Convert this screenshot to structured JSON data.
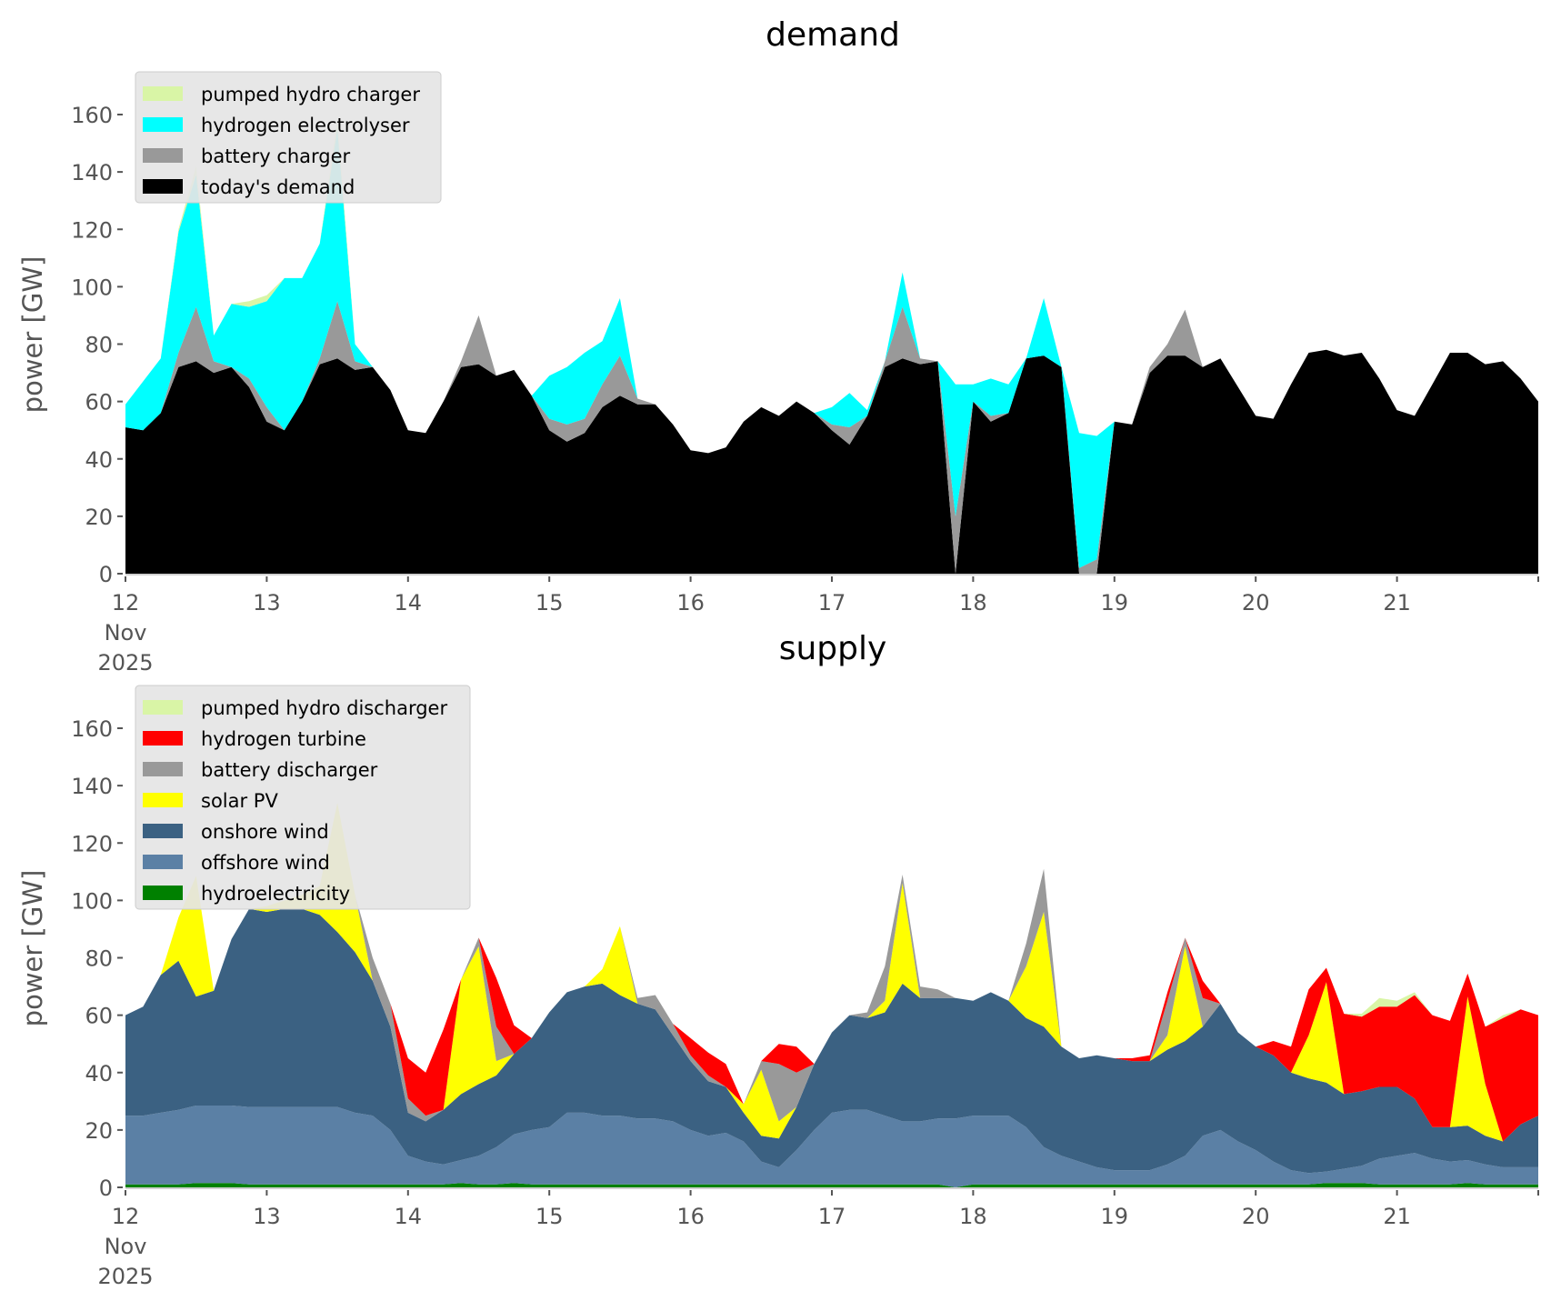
{
  "chart_data": [
    {
      "type": "area",
      "stacked": true,
      "title": "demand",
      "ylabel": "power [GW]",
      "xlabel": "",
      "x_start_day": 12,
      "x_step_days": 0.125,
      "xlim": [
        12,
        22
      ],
      "ylim": [
        0,
        175
      ],
      "yticks": [
        0,
        20,
        40,
        60,
        80,
        100,
        120,
        140,
        160
      ],
      "xticks": [
        {
          "value": 12,
          "label": "12\nNov\n2025"
        },
        {
          "value": 13,
          "label": "13"
        },
        {
          "value": 14,
          "label": "14"
        },
        {
          "value": 15,
          "label": "15"
        },
        {
          "value": 16,
          "label": "16"
        },
        {
          "value": 17,
          "label": "17"
        },
        {
          "value": 18,
          "label": "18"
        },
        {
          "value": 19,
          "label": "19"
        },
        {
          "value": 20,
          "label": "20"
        },
        {
          "value": 21,
          "label": "21"
        },
        {
          "value": 22,
          "label": ""
        }
      ],
      "grid": false,
      "legend_position": "top-left",
      "legend_order": [
        "pumped hydro charger",
        "hydrogen electrolyser",
        "battery charger",
        "today's demand"
      ],
      "series": [
        {
          "name": "today's demand",
          "color": "#000000",
          "values": [
            51,
            50,
            56,
            72,
            74,
            70,
            72,
            65,
            53,
            50,
            60,
            73,
            75,
            71,
            72,
            64,
            50,
            49,
            60,
            72,
            73,
            69,
            71,
            62,
            50,
            46,
            49,
            58,
            62,
            59,
            59,
            52,
            43,
            42,
            44,
            53,
            58,
            55,
            60,
            56,
            50,
            45,
            55,
            72,
            75,
            73,
            74,
            0,
            60,
            53,
            56,
            75,
            76,
            72,
            0,
            0,
            53,
            52,
            70,
            76,
            76,
            72,
            75,
            65,
            55,
            54,
            66,
            77,
            78,
            76,
            77,
            68,
            57,
            55,
            66,
            77,
            77,
            73,
            74,
            68,
            60
          ]
        },
        {
          "name": "battery charger",
          "color": "#999999",
          "values": [
            0,
            0,
            0,
            5,
            19,
            4,
            0,
            3,
            5,
            0,
            0,
            2,
            20,
            3,
            0,
            0,
            0,
            0,
            0,
            2,
            17,
            0,
            0,
            0,
            4,
            6,
            5,
            8,
            14,
            2,
            0,
            0,
            0,
            0,
            0,
            0,
            0,
            0,
            0,
            0,
            2,
            6,
            0,
            2,
            18,
            2,
            0,
            20,
            0,
            2,
            0,
            0,
            0,
            0,
            2,
            5,
            0,
            0,
            2,
            4,
            16,
            0,
            0,
            0,
            0,
            0,
            0,
            0,
            0,
            0,
            0,
            0,
            0,
            0,
            0,
            0,
            0,
            0,
            0,
            0,
            0
          ]
        },
        {
          "name": "hydrogen electrolyser",
          "color": "#00ffff",
          "values": [
            8,
            17,
            19,
            42,
            46,
            9,
            22,
            25,
            37,
            53,
            43,
            40,
            60,
            6,
            0,
            0,
            0,
            0,
            0,
            0,
            0,
            0,
            0,
            0,
            15,
            20,
            23,
            15,
            20,
            0,
            0,
            0,
            0,
            0,
            0,
            0,
            0,
            0,
            0,
            0,
            6,
            12,
            2,
            0,
            12,
            0,
            0,
            46,
            6,
            13,
            10,
            0,
            20,
            0,
            47,
            43,
            0,
            0,
            0,
            0,
            0,
            0,
            0,
            0,
            0,
            0,
            0,
            0,
            0,
            0,
            0,
            0,
            0,
            0,
            0,
            0,
            0,
            0,
            0,
            0,
            0
          ]
        },
        {
          "name": "pumped hydro charger",
          "color": "#d9f5a6",
          "values": [
            0,
            0,
            0,
            1,
            3,
            0,
            0,
            2,
            2,
            0,
            0,
            0,
            3,
            0,
            0,
            0,
            0,
            0,
            0,
            0,
            0,
            0,
            0,
            0,
            0,
            0,
            0,
            0,
            0,
            0,
            0,
            0,
            0,
            0,
            0,
            0,
            0,
            0,
            0,
            0,
            0,
            0,
            0,
            0,
            0,
            0,
            0,
            0,
            0,
            0,
            0,
            0,
            0,
            0,
            0,
            0,
            0,
            0,
            0,
            0,
            0,
            0,
            0,
            0,
            0,
            0,
            0,
            0,
            0,
            0,
            0,
            0,
            0,
            0,
            0,
            0,
            0,
            0,
            0,
            0,
            0
          ]
        }
      ]
    },
    {
      "type": "area",
      "stacked": true,
      "title": "supply",
      "ylabel": "power [GW]",
      "xlabel": "",
      "x_start_day": 12,
      "x_step_days": 0.125,
      "xlim": [
        12,
        22
      ],
      "ylim": [
        0,
        175
      ],
      "yticks": [
        0,
        20,
        40,
        60,
        80,
        100,
        120,
        140,
        160
      ],
      "xticks": [
        {
          "value": 12,
          "label": "12\nNov\n2025"
        },
        {
          "value": 13,
          "label": "13"
        },
        {
          "value": 14,
          "label": "14"
        },
        {
          "value": 15,
          "label": "15"
        },
        {
          "value": 16,
          "label": "16"
        },
        {
          "value": 17,
          "label": "17"
        },
        {
          "value": 18,
          "label": "18"
        },
        {
          "value": 19,
          "label": "19"
        },
        {
          "value": 20,
          "label": "20"
        },
        {
          "value": 21,
          "label": "21"
        },
        {
          "value": 22,
          "label": ""
        }
      ],
      "grid": false,
      "legend_position": "top-left",
      "legend_order": [
        "pumped hydro discharger",
        "hydrogen turbine",
        "battery discharger",
        "solar PV",
        "onshore wind",
        "offshore wind",
        "hydroelectricity"
      ],
      "series": [
        {
          "name": "hydroelectricity",
          "color": "#008000",
          "values": [
            1,
            1,
            1,
            1,
            1.5,
            1.5,
            1.5,
            1,
            1,
            1,
            1,
            1,
            1,
            1,
            1,
            1,
            1,
            1,
            1,
            1.5,
            1,
            1,
            1.5,
            1,
            1,
            1,
            1,
            1,
            1,
            1,
            1,
            1,
            1,
            1,
            1,
            1,
            1,
            1,
            1,
            1,
            1,
            1,
            1,
            1,
            1,
            1,
            1,
            0,
            1,
            1,
            1,
            1,
            1,
            1,
            1,
            1,
            1,
            1,
            1,
            1,
            1,
            1,
            1,
            1,
            1,
            1,
            1,
            1,
            1.5,
            1.5,
            1.5,
            1,
            1,
            1,
            1,
            1,
            1.5,
            1,
            1,
            1,
            1
          ]
        },
        {
          "name": "offshore wind",
          "color": "#5b80a5",
          "values": [
            24,
            24,
            25,
            26,
            27,
            27,
            27,
            27,
            27,
            27,
            27,
            27,
            27,
            25,
            24,
            19,
            10,
            8,
            7,
            8,
            10,
            13,
            17,
            19,
            20,
            25,
            25,
            24,
            24,
            23,
            23,
            22,
            19,
            17,
            18,
            15,
            8,
            6,
            12,
            19,
            25,
            26,
            26,
            24,
            22,
            22,
            23,
            24,
            24,
            24,
            24,
            20,
            13,
            10,
            8,
            6,
            5,
            5,
            5,
            7,
            10,
            17,
            19,
            15,
            12,
            8,
            5,
            4,
            4,
            5,
            6,
            9,
            10,
            11,
            9,
            8,
            8,
            7,
            6,
            6,
            6
          ]
        },
        {
          "name": "onshore wind",
          "color": "#3b6182",
          "values": [
            35,
            38,
            48,
            52,
            38,
            40,
            58,
            69,
            68,
            69,
            69,
            67,
            61,
            56,
            47,
            36,
            15,
            14,
            19,
            23,
            25,
            25,
            28,
            32,
            40,
            42,
            44,
            46,
            42,
            40,
            38,
            30,
            24,
            19,
            16,
            10,
            9,
            10,
            15,
            23,
            28,
            33,
            32,
            36,
            48,
            43,
            42,
            42,
            40,
            43,
            40,
            38,
            42,
            38,
            36,
            39,
            39,
            38,
            38,
            40,
            40,
            38,
            44,
            38,
            36,
            37,
            34,
            33,
            31,
            26,
            26,
            25,
            24,
            19,
            11,
            12,
            12,
            10,
            9,
            15,
            18
          ]
        },
        {
          "name": "solar PV",
          "color": "#ffff00",
          "values": [
            0,
            0,
            0,
            15,
            42,
            0,
            0,
            0,
            2,
            3,
            5,
            10,
            45,
            20,
            0,
            0,
            0,
            0,
            0,
            40,
            48,
            5,
            0,
            0,
            0,
            0,
            0,
            5,
            24,
            0,
            0,
            0,
            0,
            0,
            0,
            3,
            23,
            6,
            0,
            0,
            0,
            0,
            0,
            4,
            35,
            0,
            0,
            0,
            0,
            0,
            0,
            18,
            40,
            0,
            0,
            0,
            0,
            0,
            0,
            5,
            33,
            0,
            0,
            0,
            0,
            0,
            0,
            15,
            35,
            0,
            0,
            0,
            0,
            0,
            0,
            0,
            45,
            18,
            0,
            0,
            0
          ]
        },
        {
          "name": "battery discharger",
          "color": "#999999",
          "values": [
            0,
            0,
            0,
            0,
            0,
            0,
            0,
            0,
            0,
            0,
            0,
            0,
            0,
            0,
            8,
            8,
            5,
            2,
            0,
            0,
            3,
            12,
            0,
            0,
            0,
            0,
            0,
            0,
            0,
            2,
            5,
            4,
            2,
            2,
            0,
            0,
            3,
            20,
            12,
            0,
            0,
            0,
            2,
            12,
            3,
            4,
            3,
            0,
            0,
            0,
            0,
            8,
            15,
            0,
            0,
            0,
            0,
            0,
            0,
            12,
            3,
            10,
            0,
            0,
            0,
            0,
            0,
            0,
            0,
            0,
            0,
            0,
            0,
            0,
            0,
            0,
            0,
            0,
            0,
            0,
            0
          ]
        },
        {
          "name": "hydrogen turbine",
          "color": "#ff0000",
          "values": [
            0,
            0,
            0,
            0,
            0,
            0,
            0,
            0,
            0,
            0,
            0,
            0,
            0,
            0,
            0,
            0,
            14,
            15,
            28,
            0,
            0,
            17,
            10,
            0,
            0,
            0,
            0,
            0,
            0,
            0,
            0,
            0,
            6,
            8,
            8,
            0,
            0,
            7,
            9,
            0,
            0,
            0,
            0,
            0,
            0,
            0,
            0,
            0,
            0,
            0,
            0,
            0,
            0,
            0,
            0,
            0,
            0,
            1,
            2,
            3,
            0,
            6,
            0,
            0,
            0,
            5,
            9,
            16,
            5,
            28,
            26,
            28,
            28,
            36,
            39,
            37,
            8,
            20,
            43,
            40,
            35
          ]
        },
        {
          "name": "pumped hydro discharger",
          "color": "#d9f5a6",
          "values": [
            0,
            0,
            0,
            0,
            0,
            0,
            0,
            0,
            0,
            0,
            0,
            0,
            0,
            0,
            0,
            0,
            0,
            0,
            0,
            0,
            0,
            0,
            0,
            0,
            0,
            0,
            0,
            0,
            0,
            0,
            0,
            0,
            0,
            0,
            0,
            0,
            0,
            0,
            0,
            0,
            0,
            0,
            0,
            0,
            0,
            0,
            0,
            0,
            0,
            0,
            0,
            0,
            0,
            0,
            0,
            0,
            0,
            0,
            0,
            0,
            0,
            0,
            0,
            0,
            0,
            0,
            0,
            0,
            0,
            0,
            1,
            3,
            2,
            1,
            0,
            0,
            0,
            0,
            1,
            0,
            0
          ]
        }
      ]
    }
  ]
}
